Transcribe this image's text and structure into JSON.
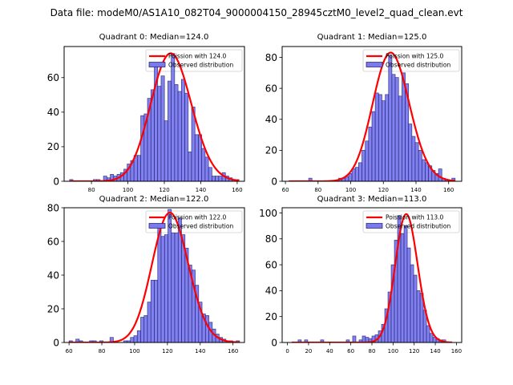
{
  "chart_data": {
    "type": "bar",
    "suptitle": "Data file: modeM0/AS1A10_082T04_9000004150_28945cztM0_level2_quad_clean.evt",
    "colors": {
      "hist_fill": "#7a7aee",
      "hist_edge": "#1a1a6a",
      "poisson_line": "#ff0000"
    },
    "panels": [
      {
        "title": "Quadrant 0: Median=124.0",
        "xlim": [
          65,
          164
        ],
        "ylim": [
          0,
          78
        ],
        "xticks": [
          80,
          100,
          120,
          140,
          160
        ],
        "yticks": [
          0,
          20,
          40,
          60
        ],
        "legend": {
          "line": "Poission with 124.0",
          "bars": "Observed distribution",
          "placement": "upper right"
        },
        "poisson_mean": 124.0,
        "poisson_peak": 74,
        "bin_start": 68,
        "bin_width": 1.86,
        "counts": [
          1,
          0,
          0,
          0,
          0,
          0,
          0,
          1,
          1,
          0,
          3,
          2,
          4,
          3,
          4,
          5,
          7,
          10,
          12,
          15,
          15,
          38,
          39,
          48,
          53,
          67,
          55,
          61,
          35,
          58,
          74,
          56,
          52,
          59,
          51,
          17,
          43,
          27,
          27,
          19,
          14,
          8,
          3,
          3,
          3,
          5,
          3,
          2,
          1,
          1
        ]
      },
      {
        "title": "Quadrant 1: Median=125.0",
        "xlim": [
          58,
          168
        ],
        "ylim": [
          0,
          87
        ],
        "xticks": [
          60,
          80,
          100,
          120,
          140,
          160
        ],
        "yticks": [
          0,
          20,
          40,
          60,
          80
        ],
        "legend": {
          "line": "Poission with 125.0",
          "bars": "Observed distribution",
          "placement": "upper right"
        },
        "poisson_mean": 125.0,
        "poisson_peak": 83,
        "bin_start": 62,
        "bin_width": 2.04,
        "counts": [
          0,
          0,
          0,
          0,
          0,
          0,
          2,
          0,
          0,
          0,
          0,
          0,
          0,
          0,
          0,
          2,
          2,
          3,
          5,
          8,
          9,
          12,
          20,
          26,
          35,
          45,
          57,
          56,
          52,
          56,
          81,
          69,
          67,
          55,
          70,
          63,
          37,
          29,
          25,
          20,
          14,
          12,
          10,
          7,
          5,
          8,
          2,
          1,
          0,
          2
        ]
      },
      {
        "title": "Quadrant 2: Median=122.0",
        "xlim": [
          57,
          167
        ],
        "ylim": [
          0,
          80
        ],
        "xticks": [
          60,
          80,
          100,
          120,
          140,
          160
        ],
        "yticks": [
          0,
          20,
          40,
          60,
          80
        ],
        "legend": {
          "line": "Poission with 122.0",
          "bars": "Observed distribution",
          "placement": "upper right"
        },
        "poisson_mean": 122.0,
        "poisson_peak": 77,
        "bin_start": 60,
        "bin_width": 2.08,
        "counts": [
          1,
          0,
          2,
          1,
          0,
          0,
          1,
          1,
          0,
          1,
          0,
          0,
          3,
          0,
          0,
          0,
          1,
          1,
          3,
          4,
          7,
          15,
          16,
          24,
          37,
          37,
          70,
          63,
          64,
          79,
          65,
          65,
          74,
          64,
          56,
          46,
          43,
          34,
          24,
          17,
          16,
          12,
          8,
          5,
          3,
          2,
          1,
          1,
          0,
          1
        ]
      },
      {
        "title": "Quadrant 3: Median=113.0",
        "xlim": [
          -5,
          165
        ],
        "ylim": [
          0,
          104
        ],
        "xticks": [
          0,
          20,
          40,
          60,
          80,
          100,
          120,
          140,
          160
        ],
        "yticks": [
          0,
          20,
          40,
          60,
          80,
          100
        ],
        "legend": {
          "line": "Poission with 113.0",
          "bars": "Observed distribution",
          "placement": "upper right"
        },
        "poisson_mean": 113.0,
        "poisson_peak": 99,
        "bin_start": 4,
        "bin_width": 3.04,
        "counts": [
          0,
          0,
          2,
          0,
          2,
          0,
          0,
          0,
          0,
          2,
          0,
          0,
          0,
          0,
          0,
          0,
          0,
          2,
          0,
          5,
          0,
          2,
          5,
          4,
          3,
          5,
          6,
          9,
          14,
          26,
          39,
          60,
          79,
          98,
          84,
          90,
          73,
          60,
          52,
          40,
          38,
          25,
          13,
          7,
          4,
          3,
          2,
          2,
          0,
          0
        ]
      }
    ]
  }
}
